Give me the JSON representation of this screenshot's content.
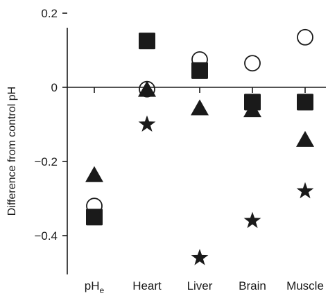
{
  "chart_data": {
    "type": "scatter",
    "ylabel": "Difference from control pH",
    "ylim": [
      -0.5,
      0.2
    ],
    "yticks": [
      {
        "value": 0.2,
        "label": "0.2"
      },
      {
        "value": 0,
        "label": "0"
      },
      {
        "value": -0.2,
        "label": "−0.2"
      },
      {
        "value": -0.4,
        "label": "−0.4"
      }
    ],
    "categories": [
      {
        "label": "pH",
        "sub": "e"
      },
      {
        "label": "Heart"
      },
      {
        "label": "Liver"
      },
      {
        "label": "Brain"
      },
      {
        "label": "Muscle"
      }
    ],
    "series": [
      {
        "marker": "open-circle",
        "values": [
          -0.32,
          -0.005,
          0.075,
          0.065,
          0.135
        ]
      },
      {
        "marker": "filled-square",
        "values": [
          -0.35,
          0.125,
          0.045,
          -0.04,
          -0.04
        ]
      },
      {
        "marker": "filled-triangle",
        "values": [
          -0.235,
          -0.005,
          -0.055,
          -0.06,
          -0.14
        ]
      },
      {
        "marker": "filled-star",
        "values": [
          null,
          -0.1,
          -0.46,
          -0.36,
          -0.28
        ]
      }
    ],
    "grid": false,
    "legend": "none"
  },
  "colors": {
    "ink": "#1a1a1a",
    "background": "#ffffff"
  }
}
